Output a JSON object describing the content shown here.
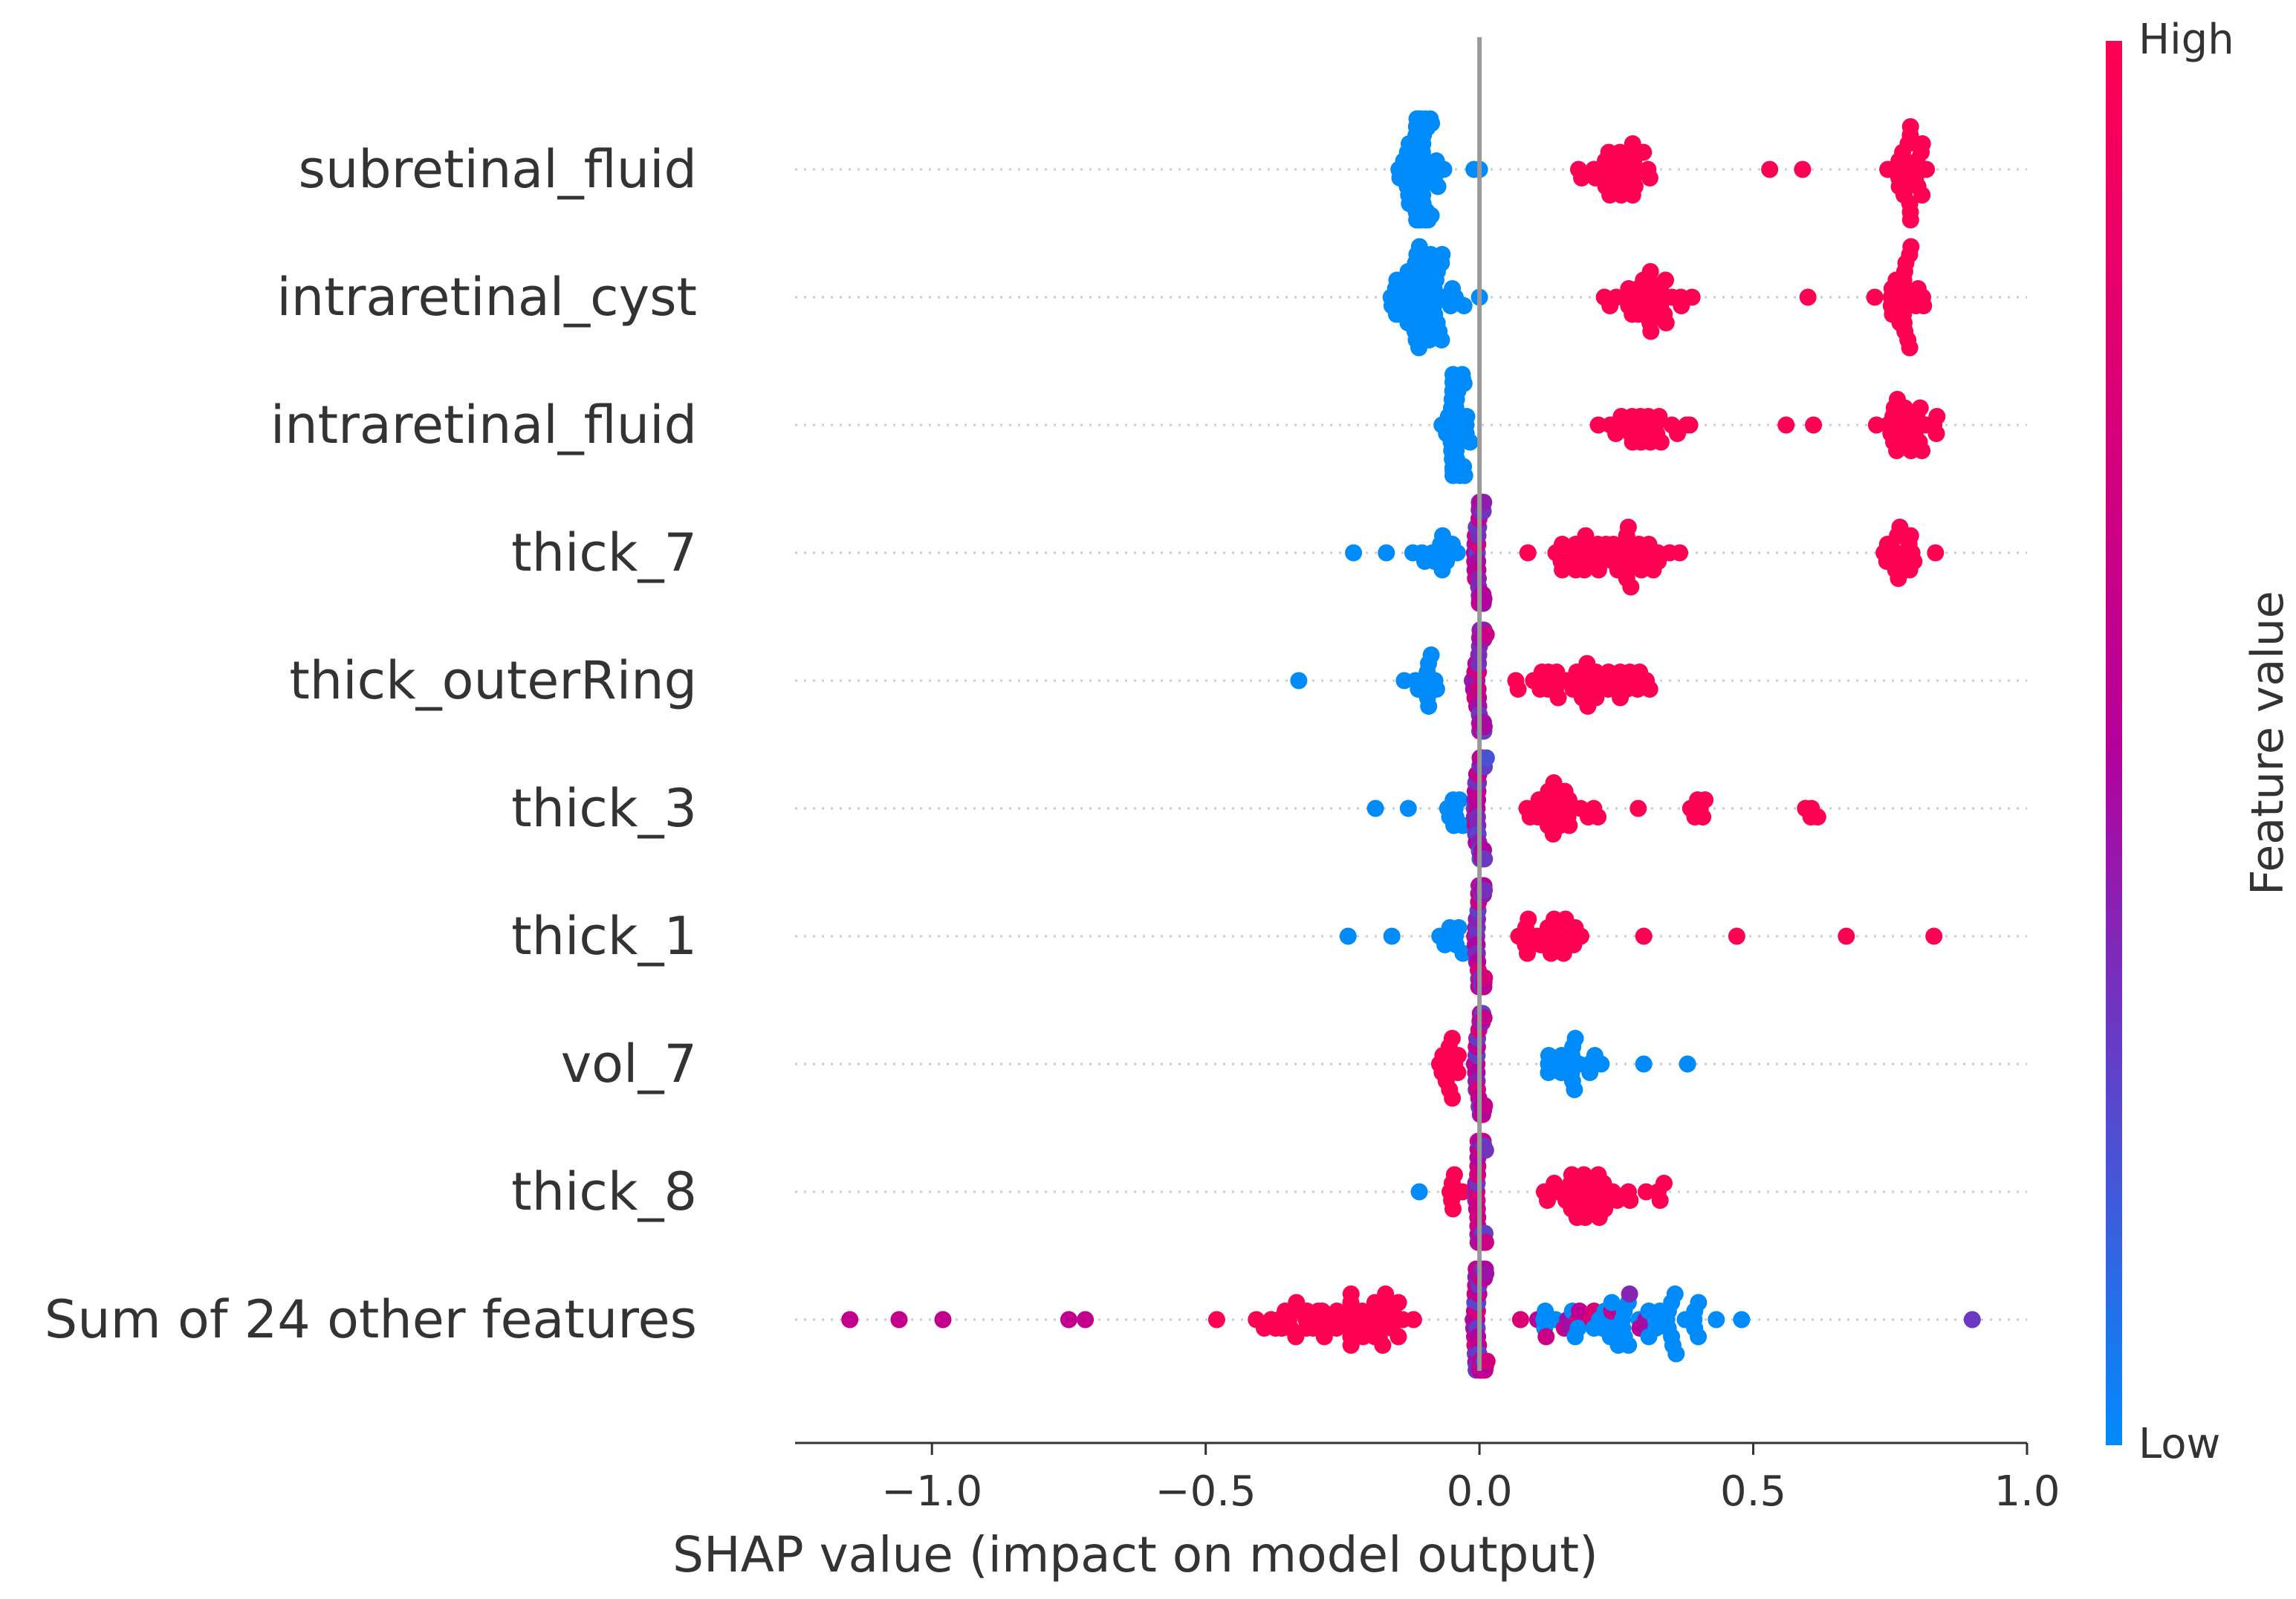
{
  "chart_data": {
    "type": "scatter",
    "subtype": "shap-beeswarm",
    "title": "",
    "xlabel": "SHAP value (impact on model output)",
    "ylabel": "",
    "xlim": [
      -1.25,
      1.0
    ],
    "xticks": [
      -1.0,
      -0.5,
      0.0,
      0.5,
      1.0
    ],
    "xtick_labels": [
      "−1.0",
      "−0.5",
      "0.0",
      "0.5",
      "1.0"
    ],
    "zero_line": 0.0,
    "colorbar": {
      "label": "Feature value",
      "high_label": "High",
      "low_label": "Low",
      "high_color": "#ff0052",
      "mid_color": "#b4009a",
      "low_color": "#008bfb"
    },
    "features": [
      {
        "name": "subretinal_fluid",
        "clusters": [
          {
            "x": -0.11,
            "n": 60,
            "spread": 0.06,
            "v": 0.0
          },
          {
            "x": 0.25,
            "n": 30,
            "spread": 0.1,
            "v": 1.0
          },
          {
            "x": 0.78,
            "n": 25,
            "spread": 0.05,
            "v": 1.0
          }
        ],
        "points": [
          {
            "x": -0.01,
            "v": 0.0
          },
          {
            "x": 0.0,
            "v": 0.0
          },
          {
            "x": 0.53,
            "v": 1.0
          },
          {
            "x": 0.59,
            "v": 1.0
          }
        ]
      },
      {
        "name": "intraretinal_cyst",
        "clusters": [
          {
            "x": -0.1,
            "n": 55,
            "spread": 0.08,
            "v": 0.0
          },
          {
            "x": 0.3,
            "n": 30,
            "spread": 0.11,
            "v": 1.0
          },
          {
            "x": 0.77,
            "n": 25,
            "spread": 0.06,
            "v": 1.0
          }
        ],
        "points": [
          {
            "x": 0.0,
            "v": 0.0
          },
          {
            "x": 0.6,
            "v": 1.0
          }
        ]
      },
      {
        "name": "intraretinal_fluid",
        "clusters": [
          {
            "x": -0.04,
            "n": 40,
            "spread": 0.03,
            "v": 0.0
          },
          {
            "x": 0.3,
            "n": 25,
            "spread": 0.11,
            "v": 1.0
          },
          {
            "x": 0.78,
            "n": 25,
            "spread": 0.08,
            "v": 1.0
          }
        ],
        "points": [
          {
            "x": 0.56,
            "v": 1.0
          },
          {
            "x": 0.61,
            "v": 1.0
          }
        ]
      },
      {
        "name": "thick_7",
        "clusters": [
          {
            "x": 0.0,
            "n": 45,
            "spread": 0.015,
            "v": 0.5
          },
          {
            "x": -0.07,
            "n": 12,
            "spread": 0.06,
            "v": 0.0
          },
          {
            "x": 0.25,
            "n": 45,
            "spread": 0.2,
            "v": 1.0
          },
          {
            "x": 0.77,
            "n": 18,
            "spread": 0.08,
            "v": 1.0
          }
        ],
        "points": [
          {
            "x": -0.23,
            "v": 0.0
          },
          {
            "x": -0.17,
            "v": 0.0
          }
        ]
      },
      {
        "name": "thick_outerRing",
        "clusters": [
          {
            "x": 0.0,
            "n": 45,
            "spread": 0.015,
            "v": 0.5
          },
          {
            "x": -0.09,
            "n": 12,
            "spread": 0.07,
            "v": 0.0
          },
          {
            "x": 0.2,
            "n": 40,
            "spread": 0.19,
            "v": 1.0
          }
        ],
        "points": [
          {
            "x": -0.33,
            "v": 0.0
          }
        ]
      },
      {
        "name": "thick_3",
        "clusters": [
          {
            "x": 0.0,
            "n": 40,
            "spread": 0.015,
            "v": 0.4
          },
          {
            "x": -0.05,
            "n": 8,
            "spread": 0.04,
            "v": 0.0
          },
          {
            "x": 0.15,
            "n": 25,
            "spread": 0.12,
            "v": 1.0
          },
          {
            "x": 0.4,
            "n": 6,
            "spread": 0.04,
            "v": 1.0
          },
          {
            "x": 0.6,
            "n": 4,
            "spread": 0.03,
            "v": 1.0
          }
        ],
        "points": [
          {
            "x": -0.19,
            "v": 0.0
          },
          {
            "x": -0.13,
            "v": 0.0
          },
          {
            "x": 0.29,
            "v": 1.0
          }
        ]
      },
      {
        "name": "thick_1",
        "clusters": [
          {
            "x": 0.0,
            "n": 40,
            "spread": 0.015,
            "v": 0.5
          },
          {
            "x": -0.05,
            "n": 8,
            "spread": 0.04,
            "v": 0.0
          },
          {
            "x": 0.12,
            "n": 22,
            "spread": 0.1,
            "v": 1.0
          }
        ],
        "points": [
          {
            "x": -0.24,
            "v": 0.0
          },
          {
            "x": -0.16,
            "v": 0.0
          },
          {
            "x": 0.3,
            "v": 1.0
          },
          {
            "x": 0.47,
            "v": 1.0
          },
          {
            "x": 0.67,
            "v": 1.0
          },
          {
            "x": 0.83,
            "v": 1.0
          }
        ]
      },
      {
        "name": "vol_7",
        "clusters": [
          {
            "x": 0.0,
            "n": 35,
            "spread": 0.015,
            "v": 0.5
          },
          {
            "x": -0.06,
            "n": 14,
            "spread": 0.04,
            "v": 1.0
          },
          {
            "x": 0.15,
            "n": 18,
            "spread": 0.1,
            "v": 0.0
          }
        ],
        "points": [
          {
            "x": 0.3,
            "v": 0.0
          },
          {
            "x": 0.38,
            "v": 0.0
          }
        ]
      },
      {
        "name": "thick_8",
        "clusters": [
          {
            "x": 0.0,
            "n": 40,
            "spread": 0.015,
            "v": 0.5
          },
          {
            "x": -0.05,
            "n": 6,
            "spread": 0.03,
            "v": 1.0
          },
          {
            "x": 0.2,
            "n": 35,
            "spread": 0.17,
            "v": 1.0
          }
        ],
        "points": [
          {
            "x": -0.11,
            "v": 0.0
          }
        ]
      },
      {
        "name": "Sum of 24 other features",
        "clusters": [
          {
            "x": 0.0,
            "n": 60,
            "spread": 0.02,
            "v": 0.5
          },
          {
            "x": -0.25,
            "n": 55,
            "spread": 0.22,
            "v": 1.0
          },
          {
            "x": 0.3,
            "n": 45,
            "spread": 0.3,
            "v": 0.0
          },
          {
            "x": 0.2,
            "n": 15,
            "spread": 0.2,
            "v": 0.55
          }
        ],
        "points": [
          {
            "x": -1.15,
            "v": 0.6
          },
          {
            "x": -1.06,
            "v": 0.6
          },
          {
            "x": -0.98,
            "v": 0.6
          },
          {
            "x": -0.75,
            "v": 0.6
          },
          {
            "x": -0.72,
            "v": 0.6
          },
          {
            "x": -0.48,
            "v": 1.0
          },
          {
            "x": 0.9,
            "v": 0.3
          }
        ]
      }
    ]
  }
}
